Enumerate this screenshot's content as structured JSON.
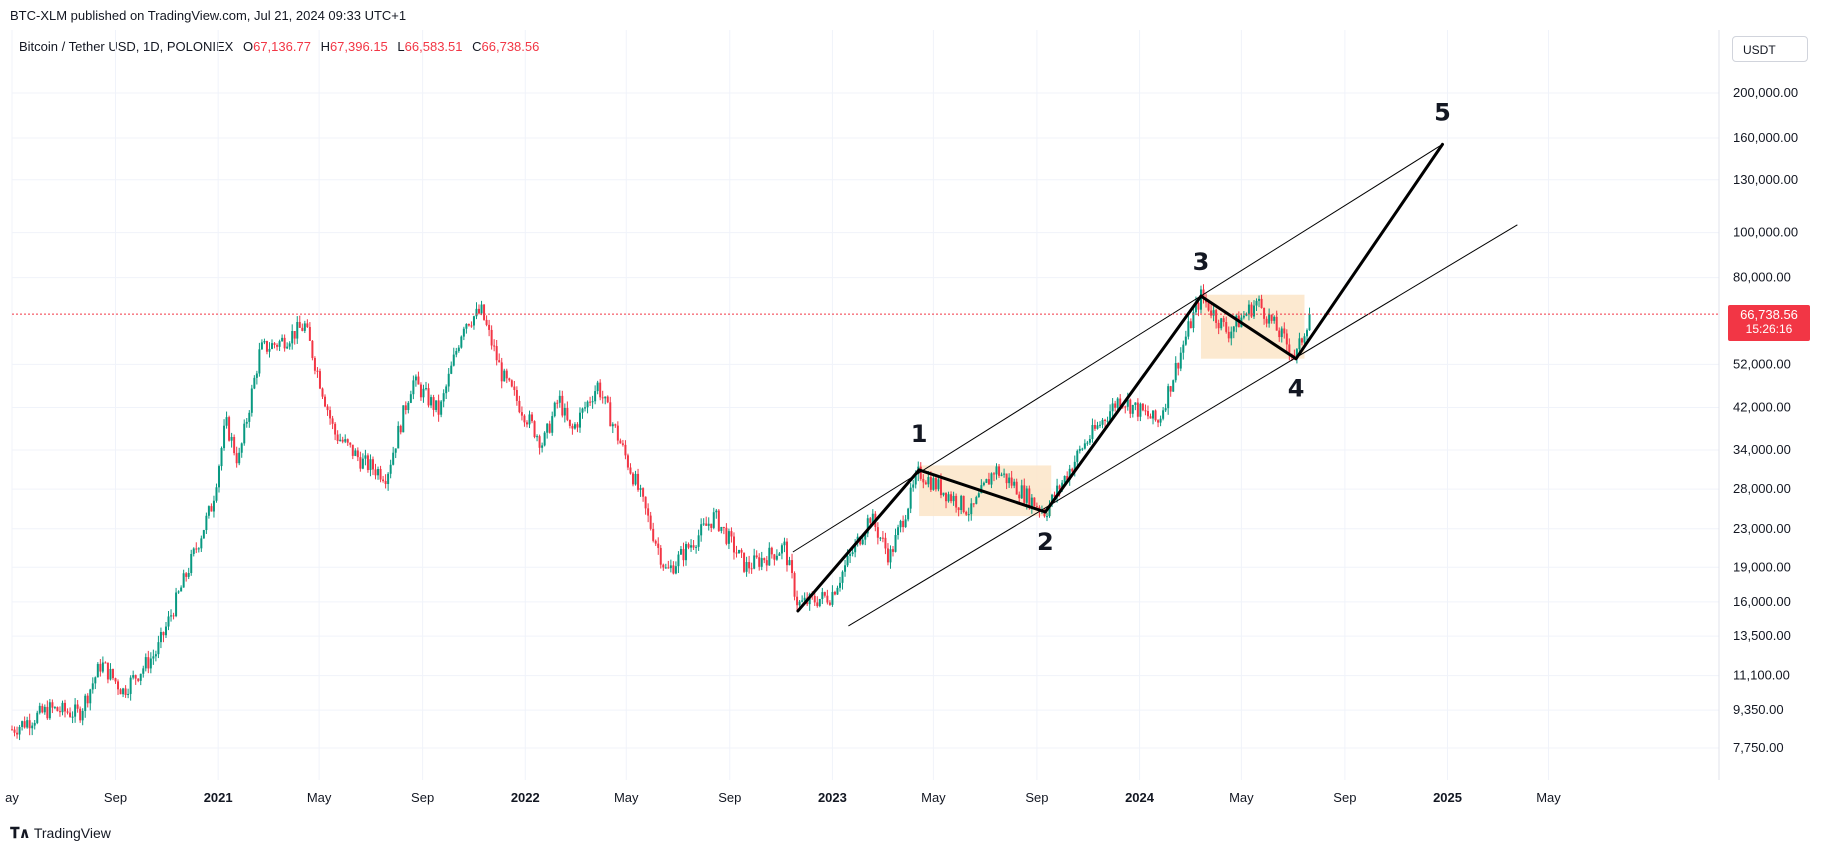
{
  "header": {
    "publisher_line": "BTC-XLM published on TradingView.com, Jul 21, 2024 09:33 UTC+1",
    "symbol": "Bitcoin / Tether USD, 1D, POLONIEX",
    "open_prefix": "O",
    "open": "67,136.77",
    "high_prefix": "H",
    "high": "67,396.15",
    "low_prefix": "L",
    "low": "66,583.51",
    "close_prefix": "C",
    "close": "66,738.56"
  },
  "currency_button": "USDT",
  "last_price": {
    "value": "66,738.56",
    "countdown": "15:26:16"
  },
  "footer": {
    "brand": "TradingView",
    "logo": "tradingview-logo-icon"
  },
  "colors": {
    "up": "#089981",
    "down": "#f23645",
    "last_price_line": "#f23645",
    "consolidation_box": "#fce5c8",
    "wave_line": "#000000",
    "channel_line": "#000000",
    "grid": "#f0f3fa"
  },
  "chart_data": {
    "type": "candlestick",
    "title": "Bitcoin / Tether USD, 1D, POLONIEX",
    "y_scale": "log",
    "ylim": [
      7000,
      240000
    ],
    "y_ticks": [
      {
        "value": 200000,
        "label": "200,000.00"
      },
      {
        "value": 160000,
        "label": "160,000.00"
      },
      {
        "value": 130000,
        "label": "130,000.00"
      },
      {
        "value": 100000,
        "label": "100,000.00"
      },
      {
        "value": 80000,
        "label": "80,000.00"
      },
      {
        "value": 52000,
        "label": "52,000.00"
      },
      {
        "value": 42000,
        "label": "42,000.00"
      },
      {
        "value": 34000,
        "label": "34,000.00"
      },
      {
        "value": 28000,
        "label": "28,000.00"
      },
      {
        "value": 23000,
        "label": "23,000.00"
      },
      {
        "value": 19000,
        "label": "19,000.00"
      },
      {
        "value": 16000,
        "label": "16,000.00"
      },
      {
        "value": 13500,
        "label": "13,500.00"
      },
      {
        "value": 11100,
        "label": "11,100.00"
      },
      {
        "value": 9350,
        "label": "9,350.00"
      },
      {
        "value": 7750,
        "label": "7,750.00"
      }
    ],
    "x_range": [
      "2020-05-01",
      "2025-09-01"
    ],
    "x_ticks": [
      {
        "date": "2020-05-01",
        "label": "ay"
      },
      {
        "date": "2020-09-01",
        "label": "Sep"
      },
      {
        "date": "2021-01-01",
        "label": "2021"
      },
      {
        "date": "2021-05-01",
        "label": "May"
      },
      {
        "date": "2021-09-01",
        "label": "Sep"
      },
      {
        "date": "2022-01-01",
        "label": "2022"
      },
      {
        "date": "2022-05-01",
        "label": "May"
      },
      {
        "date": "2022-09-01",
        "label": "Sep"
      },
      {
        "date": "2023-01-01",
        "label": "2023"
      },
      {
        "date": "2023-05-01",
        "label": "May"
      },
      {
        "date": "2023-09-01",
        "label": "Sep"
      },
      {
        "date": "2024-01-01",
        "label": "2024"
      },
      {
        "date": "2024-05-01",
        "label": "May"
      },
      {
        "date": "2024-09-01",
        "label": "Sep"
      },
      {
        "date": "2025-01-01",
        "label": "2025"
      },
      {
        "date": "2025-05-01",
        "label": "May"
      }
    ],
    "price_path": [
      {
        "date": "2020-05-01",
        "close": 8500
      },
      {
        "date": "2020-06-15",
        "close": 9400
      },
      {
        "date": "2020-07-20",
        "close": 9200
      },
      {
        "date": "2020-08-15",
        "close": 11800
      },
      {
        "date": "2020-09-10",
        "close": 10300
      },
      {
        "date": "2020-10-20",
        "close": 12500
      },
      {
        "date": "2020-11-25",
        "close": 18500
      },
      {
        "date": "2020-12-25",
        "close": 26000
      },
      {
        "date": "2021-01-10",
        "close": 39000
      },
      {
        "date": "2021-01-25",
        "close": 32000
      },
      {
        "date": "2021-02-20",
        "close": 56000
      },
      {
        "date": "2021-03-15",
        "close": 58000
      },
      {
        "date": "2021-04-14",
        "close": 63000
      },
      {
        "date": "2021-05-19",
        "close": 37000
      },
      {
        "date": "2021-06-22",
        "close": 32000
      },
      {
        "date": "2021-07-20",
        "close": 30000
      },
      {
        "date": "2021-08-20",
        "close": 48000
      },
      {
        "date": "2021-09-21",
        "close": 41000
      },
      {
        "date": "2021-10-20",
        "close": 64000
      },
      {
        "date": "2021-11-10",
        "close": 67500
      },
      {
        "date": "2021-12-05",
        "close": 49000
      },
      {
        "date": "2022-01-22",
        "close": 35000
      },
      {
        "date": "2022-02-10",
        "close": 44000
      },
      {
        "date": "2022-02-24",
        "close": 37000
      },
      {
        "date": "2022-03-28",
        "close": 47000
      },
      {
        "date": "2022-05-12",
        "close": 29000
      },
      {
        "date": "2022-06-18",
        "close": 18500
      },
      {
        "date": "2022-08-14",
        "close": 24500
      },
      {
        "date": "2022-09-20",
        "close": 19000
      },
      {
        "date": "2022-11-05",
        "close": 21000
      },
      {
        "date": "2022-11-21",
        "close": 15800
      },
      {
        "date": "2022-12-30",
        "close": 16500
      },
      {
        "date": "2023-02-15",
        "close": 24500
      },
      {
        "date": "2023-03-10",
        "close": 20000
      },
      {
        "date": "2023-04-14",
        "close": 30500
      },
      {
        "date": "2023-06-15",
        "close": 25000
      },
      {
        "date": "2023-07-13",
        "close": 31000
      },
      {
        "date": "2023-09-11",
        "close": 25000
      },
      {
        "date": "2023-10-25",
        "close": 34500
      },
      {
        "date": "2023-12-08",
        "close": 44000
      },
      {
        "date": "2024-01-23",
        "close": 39000
      },
      {
        "date": "2024-02-28",
        "close": 62000
      },
      {
        "date": "2024-03-14",
        "close": 73000
      },
      {
        "date": "2024-04-15",
        "close": 61000
      },
      {
        "date": "2024-05-20",
        "close": 71000
      },
      {
        "date": "2024-07-05",
        "close": 54000
      },
      {
        "date": "2024-07-21",
        "close": 66738.56
      }
    ],
    "last_price": 66738.56,
    "elliott_wave": [
      {
        "label": "",
        "date": "2022-11-21",
        "price": 15300
      },
      {
        "label": "1",
        "date": "2023-04-14",
        "price": 30800
      },
      {
        "label": "2",
        "date": "2023-09-11",
        "price": 25000
      },
      {
        "label": "3",
        "date": "2024-03-14",
        "price": 73000
      },
      {
        "label": "4",
        "date": "2024-07-05",
        "price": 53500
      },
      {
        "label": "5",
        "date": "2024-12-26",
        "price": 155000
      }
    ],
    "channel": [
      {
        "from": {
          "date": "2022-11-15",
          "price": 20500
        },
        "to": {
          "date": "2024-12-26",
          "price": 155000
        }
      },
      {
        "from": {
          "date": "2023-01-20",
          "price": 14200
        },
        "to": {
          "date": "2025-03-25",
          "price": 104000
        }
      }
    ],
    "consolidation_boxes": [
      {
        "from": "2023-04-14",
        "to": "2023-09-18",
        "low": 24500,
        "high": 31500
      },
      {
        "from": "2024-03-14",
        "to": "2024-07-15",
        "low": 53500,
        "high": 73500
      }
    ]
  }
}
